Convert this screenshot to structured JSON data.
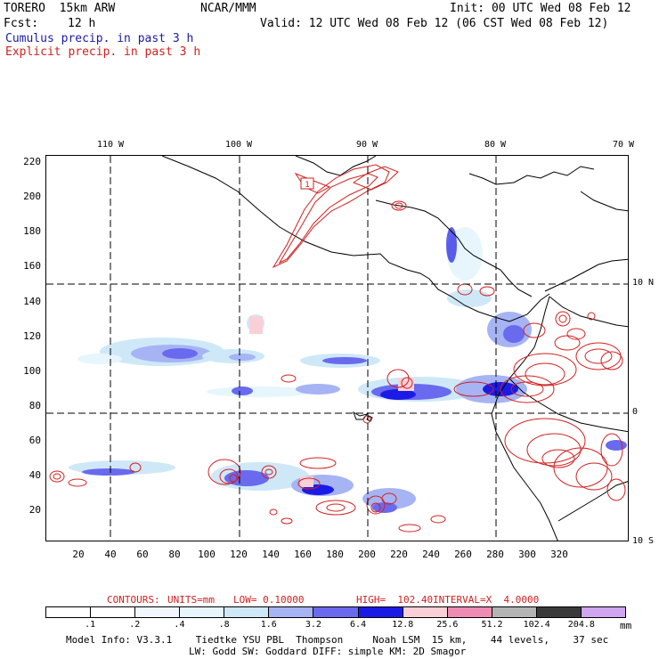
{
  "header": {
    "model": "TORERO  15km ARW",
    "org": "NCAR/MMM",
    "init": "Init: 00 UTC Wed 08 Feb 12",
    "fcst_label": "Fcst:",
    "fcst_value": "12 h",
    "valid": "Valid: 12 UTC Wed 08 Feb 12 (06 CST Wed 08 Feb 12)",
    "field1": "Cumulus precip. in past 3 h",
    "field2": "Explicit precip. in past 3 h"
  },
  "colors": {
    "cumulus": "#1a1aa6",
    "explicit": "#d22020"
  },
  "map": {
    "y_ticks": [
      "220",
      "200",
      "180",
      "160",
      "140",
      "120",
      "100",
      "80",
      "60",
      "40",
      "20"
    ],
    "x_ticks": [
      "20",
      "40",
      "60",
      "80",
      "100",
      "120",
      "140",
      "160",
      "180",
      "200",
      "220",
      "240",
      "260",
      "280",
      "300",
      "320"
    ],
    "lon_labels": [
      "110 W",
      "100 W",
      "90 W",
      "80 W",
      "70 W"
    ],
    "lat_labels": [
      "10 N",
      "0",
      "10 S"
    ],
    "box_label": "1"
  },
  "contours_info": {
    "label": "CONTOURS:",
    "units": "UNITS=mm",
    "low": "LOW= 0.10000",
    "high": "HIGH=  102.40",
    "interval": "INTERVAL=X  4.0000"
  },
  "legend": {
    "levels": [
      ".1",
      ".2",
      ".4",
      ".8",
      "1.6",
      "3.2",
      "6.4",
      "12.8",
      "25.6",
      "51.2",
      "102.4",
      "204.8"
    ],
    "unit": "mm",
    "colors": [
      "#ffffff",
      "#ffffff",
      "#f2f7ff",
      "#e6f6fc",
      "#cfe8f8",
      "#a6b4f4",
      "#6a6aee",
      "#1b1be6",
      "#f8d0d6",
      "#ef8cb4",
      "#b4b4b4",
      "#3a3a3a",
      "#d0a6f0"
    ]
  },
  "footer": {
    "line1": "Model Info: V3.3.1    Tiedtke YSU PBL  Thompson     Noah LSM  15 km,    44 levels,    37 sec",
    "line2": "LW: Godd SW: Goddard DIFF: simple KM: 2D Smagor"
  }
}
